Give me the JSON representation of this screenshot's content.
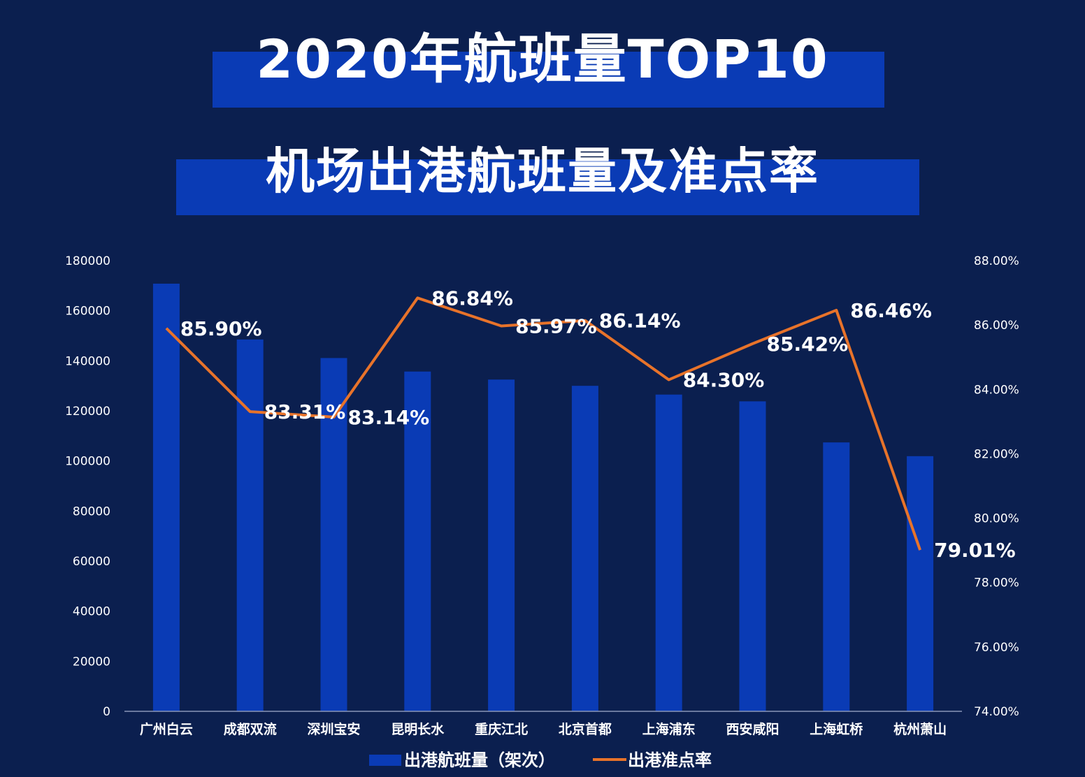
{
  "title": {
    "line1": "2020年航班量TOP10",
    "line2": "机场出港航班量及准点率"
  },
  "colors": {
    "background": "#0b1f4f",
    "band": "#0a3bb5",
    "bar": "#0a3bb5",
    "line": "#e8732a",
    "text": "#ffffff"
  },
  "chart_data": {
    "type": "bar",
    "categories": [
      "广州白云",
      "成都双流",
      "深圳宝安",
      "昆明长水",
      "重庆江北",
      "北京首都",
      "上海浦东",
      "西安咸阳",
      "上海虹桥",
      "杭州萧山"
    ],
    "series": [
      {
        "name": "出港航班量（架次）",
        "type": "bar",
        "axis": "left",
        "values": [
          170800,
          148500,
          141100,
          135700,
          132500,
          130000,
          126500,
          123800,
          107400,
          101900
        ]
      },
      {
        "name": "出港准点率",
        "type": "line",
        "axis": "right",
        "values": [
          85.9,
          83.31,
          83.14,
          86.84,
          85.97,
          86.14,
          84.3,
          85.42,
          86.46,
          79.01
        ],
        "labels": [
          "85.90%",
          "83.31%",
          "83.14%",
          "86.84%",
          "85.97%",
          "86.14%",
          "84.30%",
          "85.42%",
          "86.46%",
          "79.01%"
        ]
      }
    ],
    "y_left": {
      "range": [
        0,
        180000
      ],
      "ticks": [
        "0",
        "20000",
        "40000",
        "60000",
        "80000",
        "100000",
        "120000",
        "140000",
        "160000",
        "180000"
      ]
    },
    "y_right": {
      "range": [
        74,
        88
      ],
      "ticks": [
        "74.00%",
        "76.00%",
        "78.00%",
        "80.00%",
        "82.00%",
        "84.00%",
        "86.00%",
        "88.00%"
      ]
    },
    "legend_position": "bottom",
    "grid": false
  }
}
